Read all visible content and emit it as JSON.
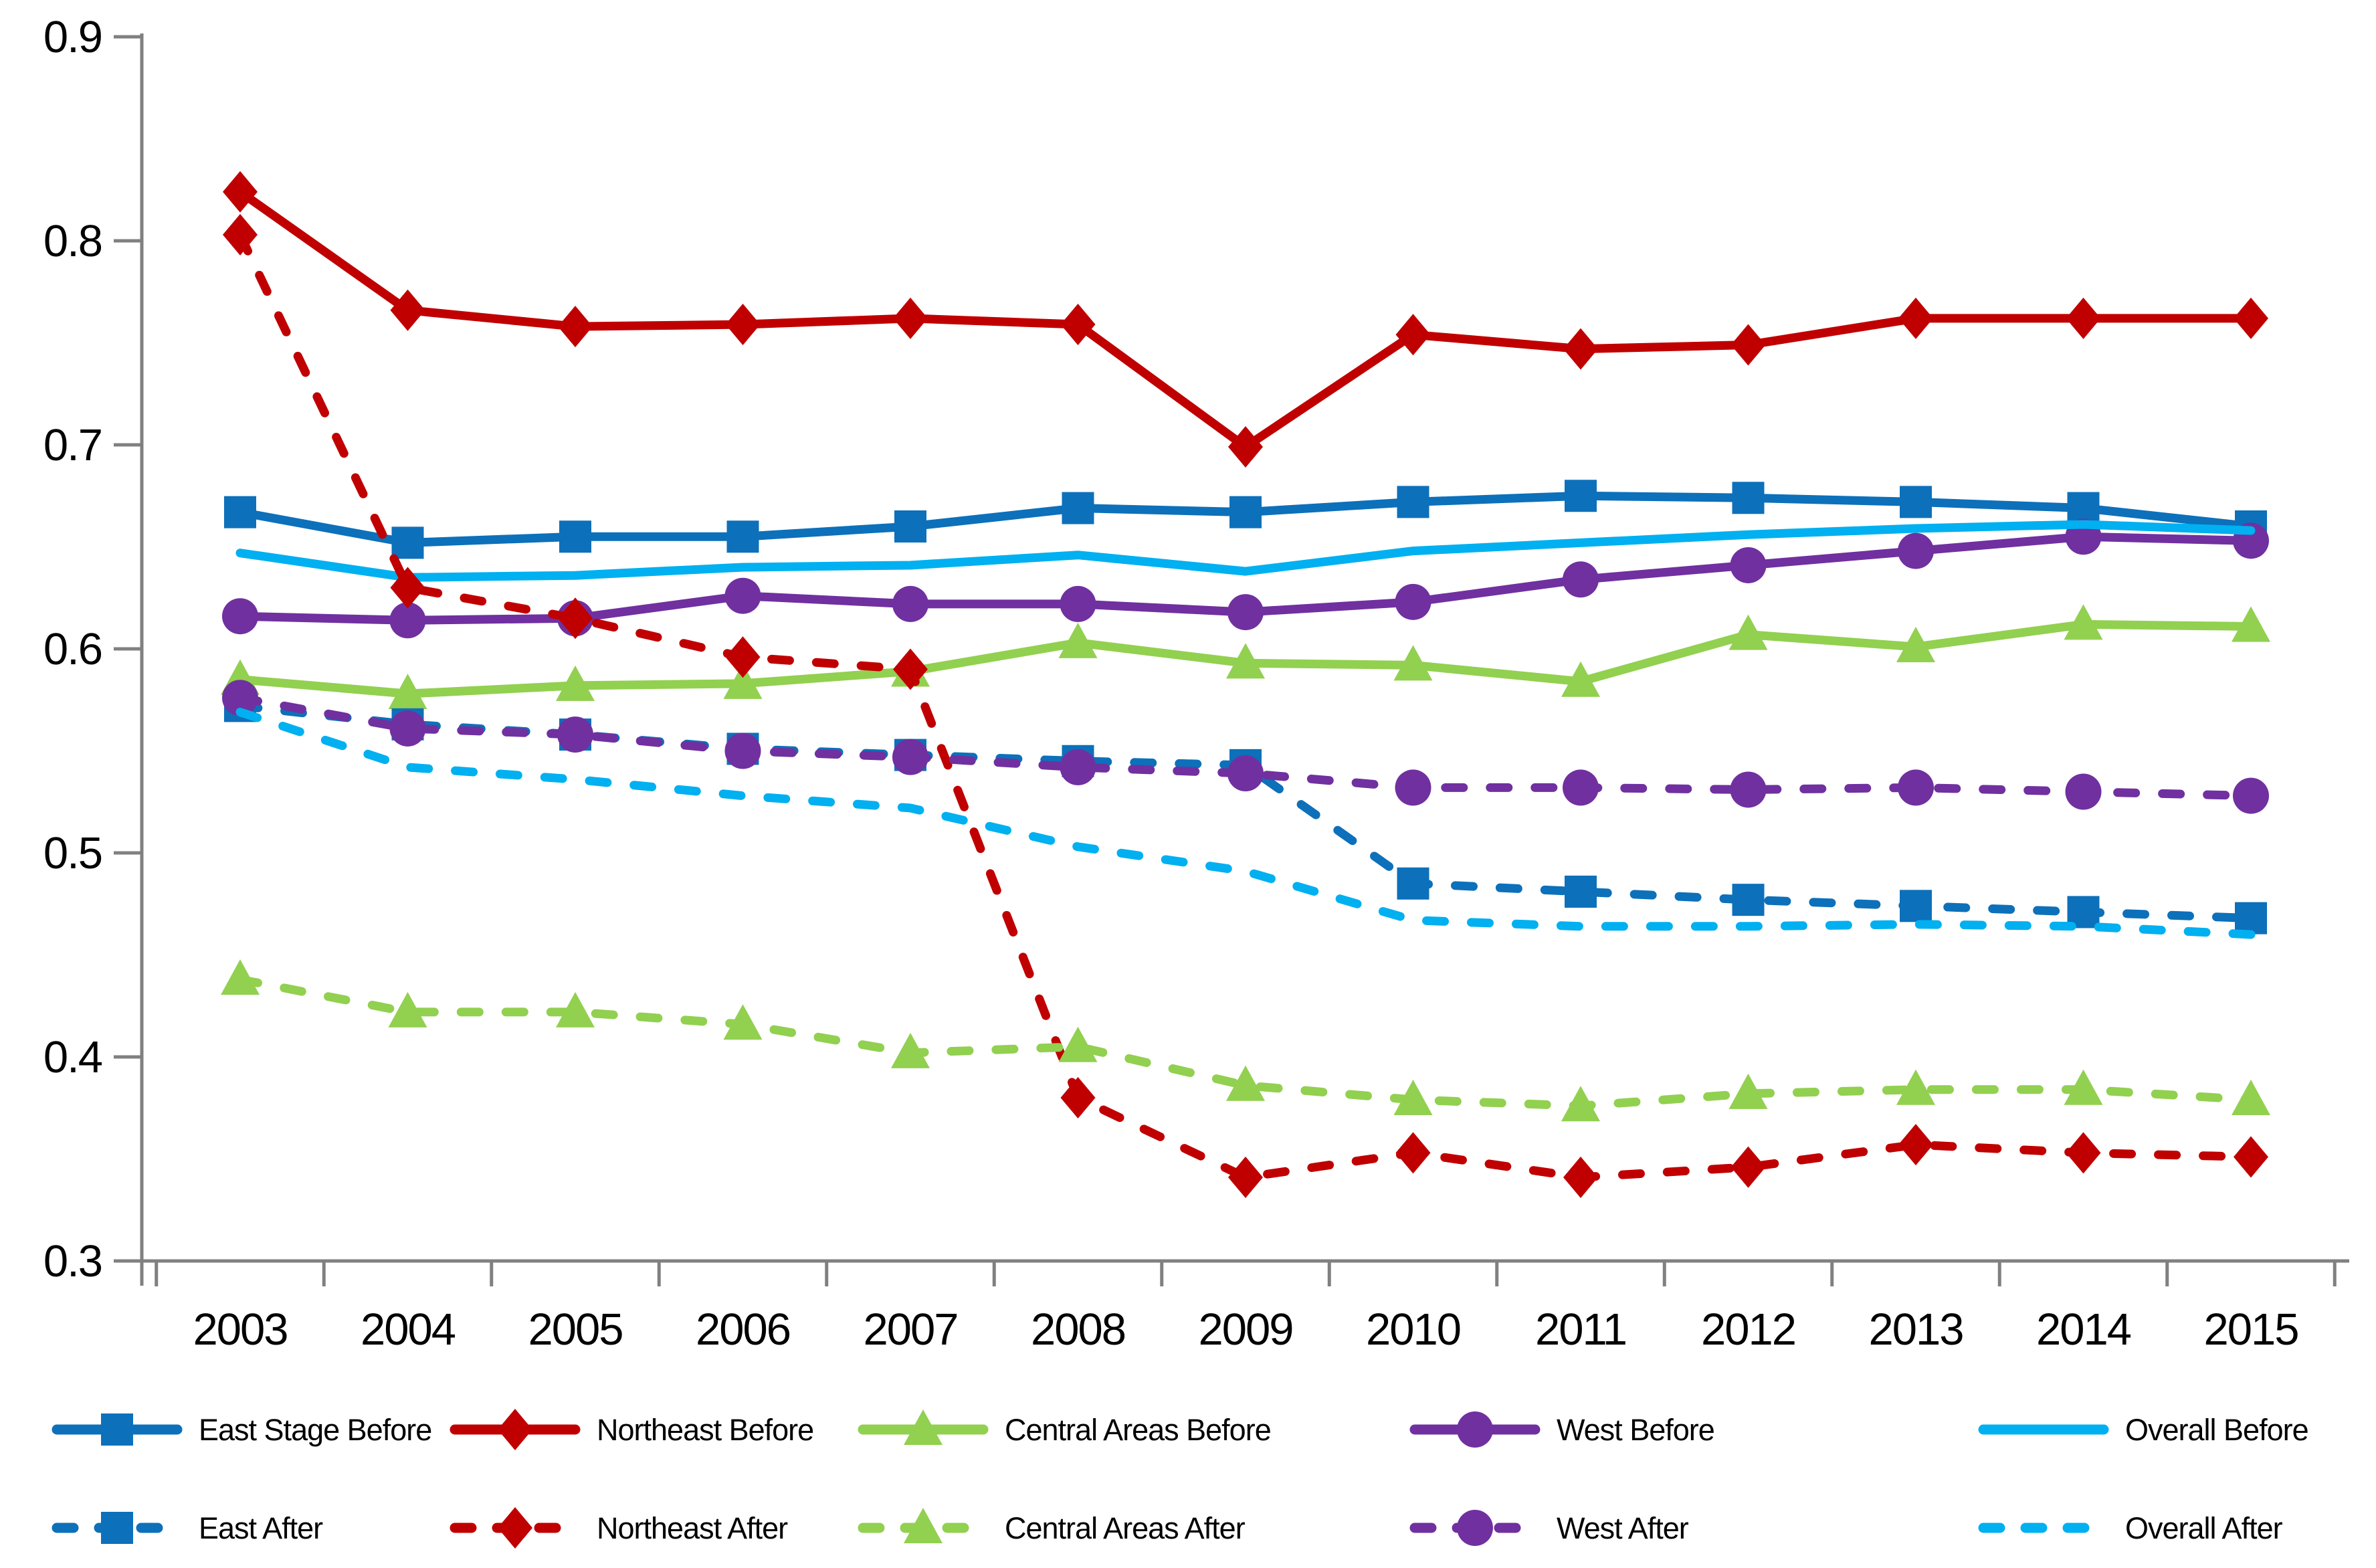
{
  "chart_data": {
    "type": "line",
    "title": "",
    "xlabel": "",
    "ylabel": "",
    "grid": "off",
    "legend_position": "bottom-two-rows",
    "background_color": "#ffffff",
    "axis_color": "#808080",
    "text_color": "#000000",
    "categories": [
      "2003",
      "2004",
      "2005",
      "2006",
      "2007",
      "2008",
      "2009",
      "2010",
      "2011",
      "2012",
      "2013",
      "2014",
      "2015"
    ],
    "y_axis": {
      "min": 0.3,
      "max": 0.9,
      "tick_step": 0.1,
      "tick_labels": [
        "0.9",
        "0.8",
        "0.7",
        "0.6",
        "0.5",
        "0.4",
        "0.3"
      ]
    },
    "series": [
      {
        "name": "East Stage Before",
        "color": "#0D70BA",
        "style": "solid",
        "marker": "square",
        "values": [
          0.667,
          0.652,
          0.655,
          0.655,
          0.66,
          0.669,
          0.667,
          0.672,
          0.675,
          0.674,
          0.672,
          0.669,
          0.66
        ]
      },
      {
        "name": "Northeast Before",
        "color": "#C00000",
        "style": "solid",
        "marker": "diamond",
        "values": [
          0.824,
          0.766,
          0.758,
          0.759,
          0.762,
          0.759,
          0.699,
          0.754,
          0.747,
          0.749,
          0.762,
          0.762,
          0.762
        ]
      },
      {
        "name": "Central Areas Before",
        "color": "#92D050",
        "style": "solid",
        "marker": "triangle",
        "values": [
          0.585,
          0.578,
          0.582,
          0.583,
          0.589,
          0.603,
          0.593,
          0.592,
          0.584,
          0.607,
          0.601,
          0.612,
          0.611
        ]
      },
      {
        "name": "West Before",
        "color": "#7030A0",
        "style": "solid",
        "marker": "circle",
        "values": [
          0.616,
          0.614,
          0.615,
          0.626,
          0.622,
          0.622,
          0.618,
          0.623,
          0.634,
          0.641,
          0.648,
          0.655,
          0.653
        ]
      },
      {
        "name": "Overall Before",
        "color": "#00B0F0",
        "style": "solid",
        "marker": "none",
        "values": [
          0.647,
          0.635,
          0.636,
          0.64,
          0.641,
          0.646,
          0.638,
          0.648,
          0.652,
          0.656,
          0.659,
          0.661,
          0.658
        ]
      },
      {
        "name": "East After",
        "color": "#0D70BA",
        "style": "dashed",
        "marker": "square",
        "values": [
          0.572,
          0.563,
          0.558,
          0.551,
          0.548,
          0.545,
          0.543,
          0.485,
          0.481,
          0.477,
          0.474,
          0.471,
          0.468
        ]
      },
      {
        "name": "Northeast After",
        "color": "#C00000",
        "style": "dashed",
        "marker": "diamond",
        "values": [
          0.803,
          0.63,
          0.615,
          0.596,
          0.59,
          0.38,
          0.341,
          0.353,
          0.341,
          0.346,
          0.357,
          0.353,
          0.351
        ]
      },
      {
        "name": "Central Areas After",
        "color": "#92D050",
        "style": "dashed",
        "marker": "triangle",
        "values": [
          0.438,
          0.422,
          0.422,
          0.416,
          0.402,
          0.405,
          0.386,
          0.379,
          0.376,
          0.382,
          0.384,
          0.384,
          0.379
        ]
      },
      {
        "name": "West After",
        "color": "#7030A0",
        "style": "dashed",
        "marker": "circle",
        "values": [
          0.576,
          0.561,
          0.558,
          0.55,
          0.547,
          0.542,
          0.539,
          0.532,
          0.532,
          0.531,
          0.532,
          0.53,
          0.528
        ]
      },
      {
        "name": "Overall After",
        "color": "#00B0F0",
        "style": "dashed",
        "marker": "none",
        "values": [
          0.569,
          0.542,
          0.536,
          0.528,
          0.522,
          0.503,
          0.491,
          0.467,
          0.464,
          0.464,
          0.465,
          0.464,
          0.46
        ]
      }
    ],
    "legend": {
      "row1": [
        "East Stage Before",
        "Northeast Before",
        "Central Areas Before",
        "West Before",
        "Overall Before"
      ],
      "row2": [
        "East After",
        "Northeast After",
        "Central Areas After",
        "West After",
        "Overall After"
      ]
    }
  }
}
